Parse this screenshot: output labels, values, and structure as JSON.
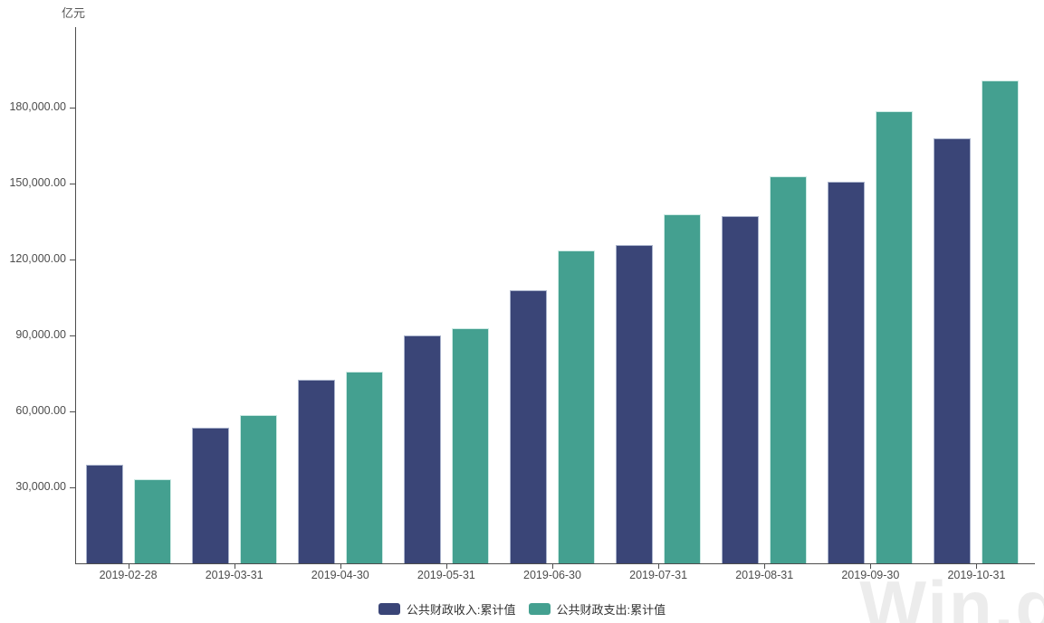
{
  "chart": {
    "unit": "亿元",
    "watermark": "Win.d"
  },
  "chart_data": {
    "type": "bar",
    "title": "",
    "xlabel": "",
    "ylabel": "亿元",
    "categories": [
      "2019-02-28",
      "2019-03-31",
      "2019-04-30",
      "2019-05-31",
      "2019-06-30",
      "2019-07-31",
      "2019-08-31",
      "2019-09-30",
      "2019-10-31"
    ],
    "series": [
      {
        "name": "公共财政收入:累计值",
        "color": "#3a4577",
        "border_color": "#a9b3cc",
        "values": [
          39104,
          53656,
          72651,
          89919,
          107846,
          125623,
          137061,
          150678,
          167704
        ]
      },
      {
        "name": "公共财政支出:累计值",
        "color": "#44a090",
        "border_color": "#cdeae4",
        "values": [
          33314,
          58629,
          75667,
          93023,
          123538,
          137963,
          152733,
          178612,
          190587
        ]
      }
    ],
    "ylim": [
      0,
      210000
    ],
    "y_ticks": [
      30000,
      60000,
      90000,
      120000,
      150000,
      180000
    ],
    "y_tick_labels": [
      "30,000.00",
      "60,000.00",
      "90,000.00",
      "120,000.00",
      "150,000.00",
      "180,000.00"
    ],
    "grid": false,
    "legend_position": "bottom",
    "axis_color": "#4d4d4d",
    "text_color": "#4d4d4d"
  }
}
